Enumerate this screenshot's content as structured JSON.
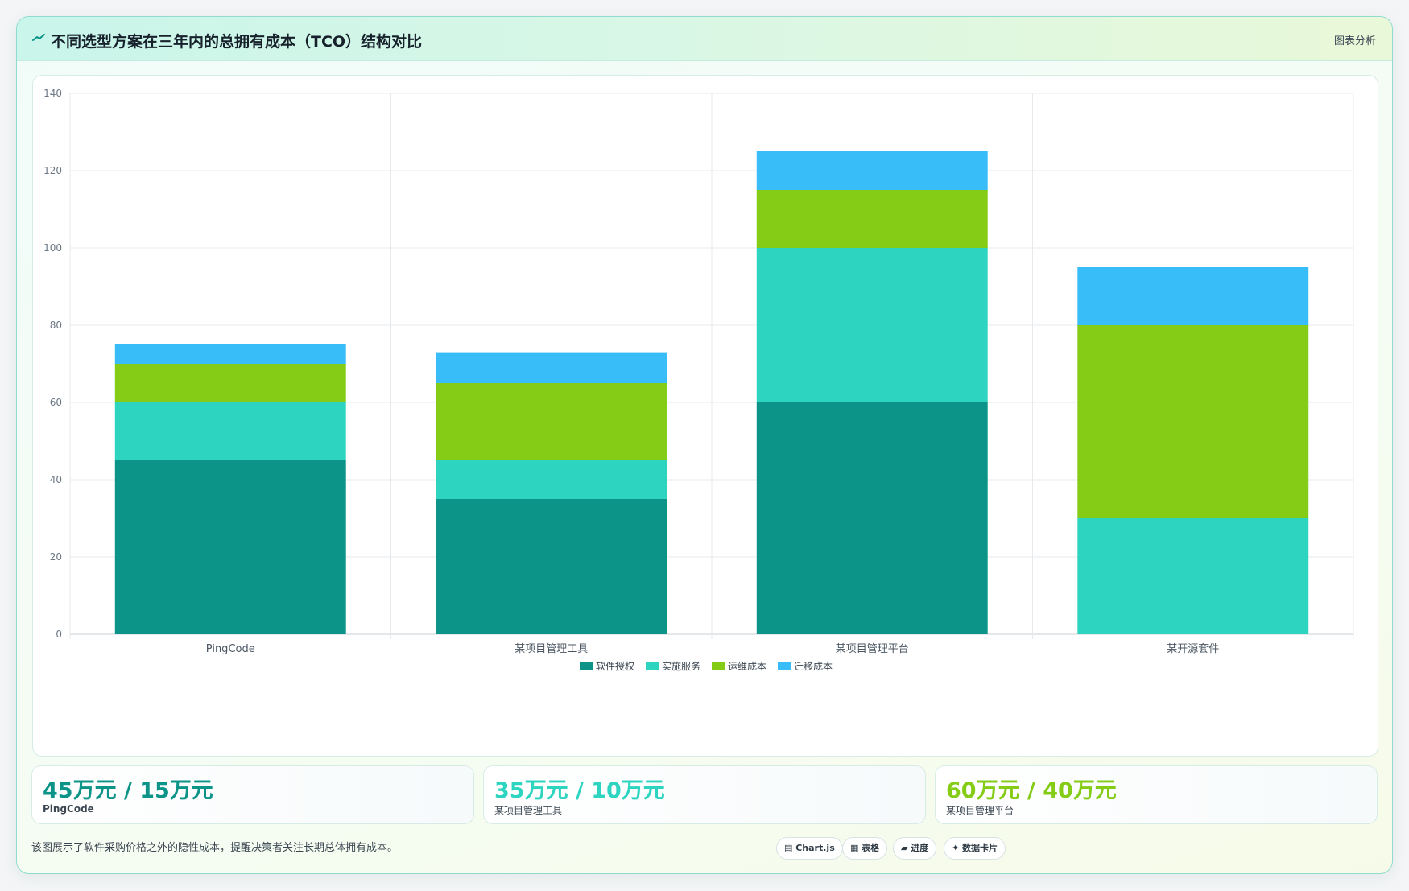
{
  "header": {
    "title": "不同选型方案在三年内的总拥有成本（TCO）结构对比",
    "badge": "图表分析"
  },
  "chart_data": {
    "type": "bar",
    "stacked": true,
    "categories": [
      "PingCode",
      "某项目管理工具",
      "某项目管理平台",
      "某开源套件"
    ],
    "series": [
      {
        "name": "软件授权",
        "color": "#0d9488",
        "values": [
          45,
          35,
          60,
          0
        ]
      },
      {
        "name": "实施服务",
        "color": "#2dd4bf",
        "values": [
          15,
          10,
          40,
          30
        ]
      },
      {
        "name": "运维成本",
        "color": "#84cc16",
        "values": [
          10,
          20,
          15,
          50
        ]
      },
      {
        "name": "迁移成本",
        "color": "#38bdf8",
        "values": [
          5,
          8,
          10,
          15
        ]
      }
    ],
    "ylim": [
      0,
      140
    ],
    "yticks": [
      0,
      20,
      40,
      60,
      80,
      100,
      120,
      140
    ],
    "grid": true,
    "legend": "bottom"
  },
  "stats": [
    {
      "value": "45万元 / 15万元",
      "label": "PingCode",
      "color": "#0d9488"
    },
    {
      "value": "35万元 / 10万元",
      "label": "某项目管理工具",
      "color": "#2dd4bf"
    },
    {
      "value": "60万元 / 40万元",
      "label": "某项目管理平台",
      "color": "#84cc16"
    }
  ],
  "footer": {
    "text": "该图展示了软件采购价格之外的隐性成本，提醒决策者关注长期总体拥有成本。"
  },
  "tags": [
    {
      "icon": "chart-icon",
      "label": "Chart.js"
    },
    {
      "icon": "table-icon",
      "label": "表格"
    },
    {
      "icon": "progress-icon",
      "label": "进度"
    },
    {
      "icon": "sparkle-icon",
      "label": "数据卡片"
    }
  ]
}
